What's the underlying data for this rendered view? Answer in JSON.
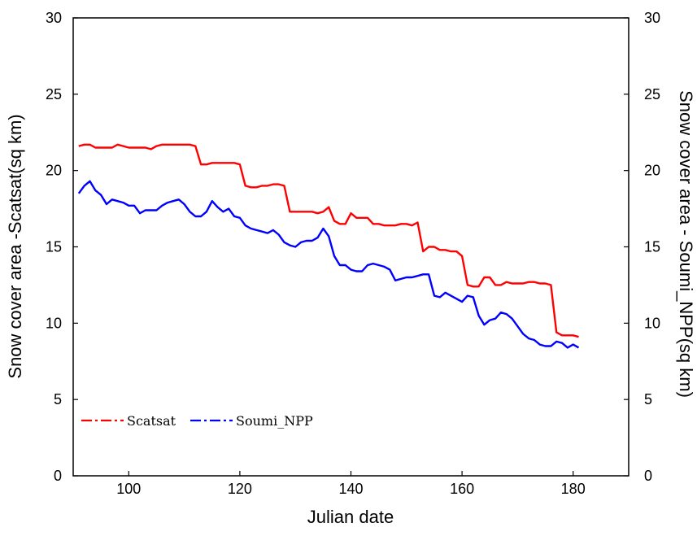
{
  "chart_data": {
    "type": "line",
    "title": "",
    "xlabel": "Julian date",
    "ylabel_left": "Snow cover area -Scatsat(sq km)",
    "ylabel_right": "Snow cover area - Soumi_NPP(sq km)",
    "xlim": [
      90,
      190
    ],
    "ylim": [
      0,
      30
    ],
    "ylim_right": [
      0,
      30
    ],
    "x_ticks": [
      "100",
      "120",
      "140",
      "160",
      "180"
    ],
    "x_tick_values": [
      100,
      120,
      140,
      160,
      180
    ],
    "y_ticks": [
      "0",
      "5",
      "10",
      "15",
      "20",
      "25",
      "30"
    ],
    "y_tick_values": [
      0,
      5,
      10,
      15,
      20,
      25,
      30
    ],
    "grid": false,
    "legend_position": "bottom-left",
    "series": [
      {
        "name": "Scatsat",
        "color": "#ff0000",
        "axis": "left",
        "points": [
          [
            91,
            21.6
          ],
          [
            92,
            21.7
          ],
          [
            93,
            21.7
          ],
          [
            94,
            21.5
          ],
          [
            95,
            21.5
          ],
          [
            96,
            21.5
          ],
          [
            97,
            21.5
          ],
          [
            98,
            21.7
          ],
          [
            99,
            21.6
          ],
          [
            100,
            21.5
          ],
          [
            101,
            21.5
          ],
          [
            102,
            21.5
          ],
          [
            103,
            21.5
          ],
          [
            104,
            21.4
          ],
          [
            105,
            21.6
          ],
          [
            106,
            21.7
          ],
          [
            107,
            21.7
          ],
          [
            108,
            21.7
          ],
          [
            109,
            21.7
          ],
          [
            110,
            21.7
          ],
          [
            111,
            21.7
          ],
          [
            112,
            21.6
          ],
          [
            113,
            20.4
          ],
          [
            114,
            20.4
          ],
          [
            115,
            20.5
          ],
          [
            116,
            20.5
          ],
          [
            117,
            20.5
          ],
          [
            118,
            20.5
          ],
          [
            119,
            20.5
          ],
          [
            120,
            20.4
          ],
          [
            121,
            19.0
          ],
          [
            122,
            18.9
          ],
          [
            123,
            18.9
          ],
          [
            124,
            19.0
          ],
          [
            125,
            19.0
          ],
          [
            126,
            19.1
          ],
          [
            127,
            19.1
          ],
          [
            128,
            19.0
          ],
          [
            129,
            17.3
          ],
          [
            130,
            17.3
          ],
          [
            131,
            17.3
          ],
          [
            132,
            17.3
          ],
          [
            133,
            17.3
          ],
          [
            134,
            17.2
          ],
          [
            135,
            17.3
          ],
          [
            136,
            17.6
          ],
          [
            137,
            16.7
          ],
          [
            138,
            16.5
          ],
          [
            139,
            16.5
          ],
          [
            140,
            17.2
          ],
          [
            141,
            16.9
          ],
          [
            142,
            16.9
          ],
          [
            143,
            16.9
          ],
          [
            144,
            16.5
          ],
          [
            145,
            16.5
          ],
          [
            146,
            16.4
          ],
          [
            147,
            16.4
          ],
          [
            148,
            16.4
          ],
          [
            149,
            16.5
          ],
          [
            150,
            16.5
          ],
          [
            151,
            16.4
          ],
          [
            152,
            16.6
          ],
          [
            153,
            14.7
          ],
          [
            154,
            15.0
          ],
          [
            155,
            15.0
          ],
          [
            156,
            14.8
          ],
          [
            157,
            14.8
          ],
          [
            158,
            14.7
          ],
          [
            159,
            14.7
          ],
          [
            160,
            14.4
          ],
          [
            161,
            12.5
          ],
          [
            162,
            12.4
          ],
          [
            163,
            12.4
          ],
          [
            164,
            13.0
          ],
          [
            165,
            13.0
          ],
          [
            166,
            12.5
          ],
          [
            167,
            12.5
          ],
          [
            168,
            12.7
          ],
          [
            169,
            12.6
          ],
          [
            170,
            12.6
          ],
          [
            171,
            12.6
          ],
          [
            172,
            12.7
          ],
          [
            173,
            12.7
          ],
          [
            174,
            12.6
          ],
          [
            175,
            12.6
          ],
          [
            176,
            12.5
          ],
          [
            177,
            9.4
          ],
          [
            178,
            9.2
          ],
          [
            179,
            9.2
          ],
          [
            180,
            9.2
          ],
          [
            181,
            9.1
          ]
        ]
      },
      {
        "name": "Soumi_NPP",
        "color": "#0000ff",
        "axis": "right",
        "points": [
          [
            91,
            18.5
          ],
          [
            92,
            19.0
          ],
          [
            93,
            19.3
          ],
          [
            94,
            18.7
          ],
          [
            95,
            18.4
          ],
          [
            96,
            17.8
          ],
          [
            97,
            18.1
          ],
          [
            98,
            18.0
          ],
          [
            99,
            17.9
          ],
          [
            100,
            17.7
          ],
          [
            101,
            17.7
          ],
          [
            102,
            17.2
          ],
          [
            103,
            17.4
          ],
          [
            104,
            17.4
          ],
          [
            105,
            17.4
          ],
          [
            106,
            17.7
          ],
          [
            107,
            17.9
          ],
          [
            108,
            18.0
          ],
          [
            109,
            18.1
          ],
          [
            110,
            17.8
          ],
          [
            111,
            17.3
          ],
          [
            112,
            17.0
          ],
          [
            113,
            17.0
          ],
          [
            114,
            17.3
          ],
          [
            115,
            18.0
          ],
          [
            116,
            17.6
          ],
          [
            117,
            17.3
          ],
          [
            118,
            17.5
          ],
          [
            119,
            17.0
          ],
          [
            120,
            16.9
          ],
          [
            121,
            16.4
          ],
          [
            122,
            16.2
          ],
          [
            123,
            16.1
          ],
          [
            124,
            16.0
          ],
          [
            125,
            15.9
          ],
          [
            126,
            16.1
          ],
          [
            127,
            15.8
          ],
          [
            128,
            15.3
          ],
          [
            129,
            15.1
          ],
          [
            130,
            15.0
          ],
          [
            131,
            15.3
          ],
          [
            132,
            15.4
          ],
          [
            133,
            15.4
          ],
          [
            134,
            15.6
          ],
          [
            135,
            16.2
          ],
          [
            136,
            15.7
          ],
          [
            137,
            14.4
          ],
          [
            138,
            13.8
          ],
          [
            139,
            13.8
          ],
          [
            140,
            13.5
          ],
          [
            141,
            13.4
          ],
          [
            142,
            13.4
          ],
          [
            143,
            13.8
          ],
          [
            144,
            13.9
          ],
          [
            145,
            13.8
          ],
          [
            146,
            13.7
          ],
          [
            147,
            13.5
          ],
          [
            148,
            12.8
          ],
          [
            149,
            12.9
          ],
          [
            150,
            13.0
          ],
          [
            151,
            13.0
          ],
          [
            152,
            13.1
          ],
          [
            153,
            13.2
          ],
          [
            154,
            13.2
          ],
          [
            155,
            11.8
          ],
          [
            156,
            11.7
          ],
          [
            157,
            12.0
          ],
          [
            158,
            11.8
          ],
          [
            159,
            11.6
          ],
          [
            160,
            11.4
          ],
          [
            161,
            11.8
          ],
          [
            162,
            11.7
          ],
          [
            163,
            10.5
          ],
          [
            164,
            9.9
          ],
          [
            165,
            10.2
          ],
          [
            166,
            10.3
          ],
          [
            167,
            10.7
          ],
          [
            168,
            10.6
          ],
          [
            169,
            10.3
          ],
          [
            170,
            9.8
          ],
          [
            171,
            9.3
          ],
          [
            172,
            9.0
          ],
          [
            173,
            8.9
          ],
          [
            174,
            8.6
          ],
          [
            175,
            8.5
          ],
          [
            176,
            8.5
          ],
          [
            177,
            8.8
          ],
          [
            178,
            8.7
          ],
          [
            179,
            8.4
          ],
          [
            180,
            8.6
          ],
          [
            181,
            8.4
          ]
        ]
      }
    ]
  }
}
